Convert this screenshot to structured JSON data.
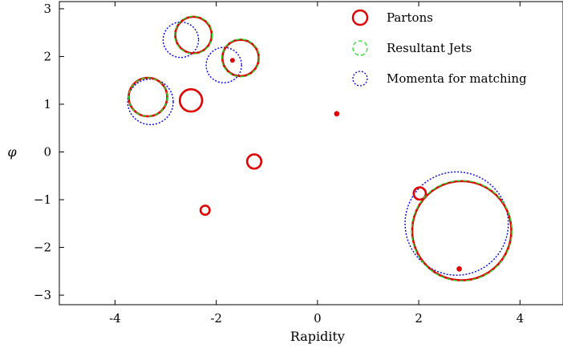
{
  "chart_data": {
    "type": "scatter",
    "title": "",
    "xlabel": "Rapidity",
    "ylabel": "φ",
    "xlim": [
      -5.1,
      4.85
    ],
    "ylim": [
      -3.2,
      3.15
    ],
    "xticks": [
      -4,
      -2,
      0,
      2,
      4
    ],
    "xtick_labels": [
      "-4",
      "-2",
      "0",
      "2",
      "4"
    ],
    "yticks": [
      -3,
      -2,
      -1,
      0,
      1,
      2,
      3
    ],
    "ytick_labels": [
      "−3",
      "−2",
      "−1",
      "0",
      "1",
      "2",
      "3"
    ],
    "grid": false,
    "legend_position": "top-right",
    "series": [
      {
        "name": "Partons",
        "color": "#e00000",
        "style": "solid",
        "points": [
          {
            "x": -3.35,
            "y": 1.15,
            "r": 0.38
          },
          {
            "x": -2.45,
            "y": 2.45,
            "r": 0.36
          },
          {
            "x": -1.52,
            "y": 1.97,
            "r": 0.36
          },
          {
            "x": -2.5,
            "y": 1.08,
            "r": 0.22
          },
          {
            "x": -1.25,
            "y": -0.2,
            "r": 0.14
          },
          {
            "x": -2.22,
            "y": -1.22,
            "r": 0.09
          },
          {
            "x": -1.68,
            "y": 1.92,
            "r": 0.03
          },
          {
            "x": 0.38,
            "y": 0.8,
            "r": 0.045
          },
          {
            "x": 2.02,
            "y": -0.87,
            "r": 0.12
          },
          {
            "x": 2.8,
            "y": -2.45,
            "r": 0.045
          },
          {
            "x": 2.85,
            "y": -1.65,
            "r": 0.98
          }
        ]
      },
      {
        "name": "Resultant Jets",
        "color": "#22dd22",
        "style": "dashed",
        "points": [
          {
            "x": -3.35,
            "y": 1.15,
            "r": 0.38
          },
          {
            "x": -2.45,
            "y": 2.45,
            "r": 0.37
          },
          {
            "x": -1.52,
            "y": 1.97,
            "r": 0.37
          },
          {
            "x": 2.85,
            "y": -1.65,
            "r": 0.99
          }
        ]
      },
      {
        "name": "Momenta for matching",
        "color": "#0000ee",
        "style": "dotted",
        "points": [
          {
            "x": -2.7,
            "y": 2.35,
            "r": 0.35
          },
          {
            "x": -1.85,
            "y": 1.82,
            "r": 0.35
          },
          {
            "x": -3.3,
            "y": 1.05,
            "r": 0.45
          },
          {
            "x": 2.75,
            "y": -1.5,
            "r": 1.02
          }
        ]
      }
    ]
  }
}
